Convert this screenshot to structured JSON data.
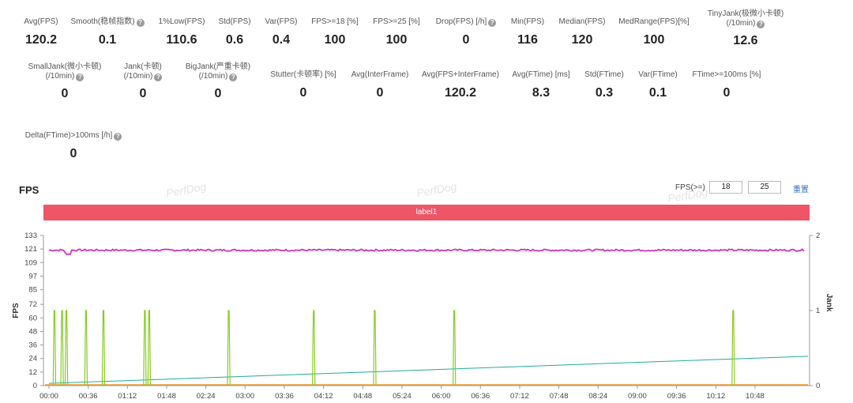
{
  "stats": [
    {
      "label": "Avg(FPS)",
      "value": "120.2",
      "help": false
    },
    {
      "label": "Smooth(稳帧指数)",
      "value": "0.1",
      "help": true
    },
    {
      "label": "1%Low(FPS)",
      "value": "110.6",
      "help": false
    },
    {
      "label": "Std(FPS)",
      "value": "0.6",
      "help": false
    },
    {
      "label": "Var(FPS)",
      "value": "0.4",
      "help": false
    },
    {
      "label": "FPS>=18 [%]",
      "value": "100",
      "help": false
    },
    {
      "label": "FPS>=25 [%]",
      "value": "100",
      "help": false
    },
    {
      "label": "Drop(FPS) [/h]",
      "value": "0",
      "help": true
    },
    {
      "label": "Min(FPS)",
      "value": "116",
      "help": false
    },
    {
      "label": "Median(FPS)",
      "value": "120",
      "help": false
    },
    {
      "label": "MedRange(FPS)[%]",
      "value": "100",
      "help": false
    },
    {
      "label": "TinyJank(极微小卡顿)",
      "label2": "(/10min)",
      "value": "12.6",
      "help": true
    },
    {
      "label": "SmallJank(微小卡顿)",
      "label2": "(/10min)",
      "value": "0",
      "help": true
    },
    {
      "label": "Jank(卡顿)",
      "label2": "(/10min)",
      "value": "0",
      "help": true
    },
    {
      "label": "BigJank(严重卡顿)",
      "label2": "(/10min)",
      "value": "0",
      "help": true
    },
    {
      "label": "Stutter(卡顿率) [%]",
      "value": "0",
      "help": false
    },
    {
      "label": "Avg(InterFrame)",
      "value": "0",
      "help": false
    },
    {
      "label": "Avg(FPS+InterFrame)",
      "value": "120.2",
      "help": false
    },
    {
      "label": "Avg(FTime) [ms]",
      "value": "8.3",
      "help": false
    },
    {
      "label": "Std(FTime)",
      "value": "0.3",
      "help": false
    },
    {
      "label": "Var(FTime)",
      "value": "0.1",
      "help": false
    },
    {
      "label": "FTime>=100ms [%]",
      "value": "0",
      "help": false
    },
    {
      "label": "Delta(FTime)>100ms [/h]",
      "value": "0",
      "help": true
    }
  ],
  "section_title": "FPS",
  "filter": {
    "label": "FPS(>=)",
    "value1": "18",
    "value2": "25",
    "reset_label": "重置"
  },
  "watermark": "PerfDog",
  "label_bar": "label1",
  "colors": {
    "fps": "#cc33bb",
    "jank": "#88cc22",
    "trend": "#22aa99",
    "base": "#ee9933",
    "label_bar": "#ee5566",
    "link": "#2f6fd8"
  },
  "chart_data": {
    "type": "line",
    "ylabel": "FPS",
    "y2label": "Jank",
    "yticks": [
      0,
      12,
      24,
      36,
      48,
      60,
      72,
      85,
      97,
      109,
      121,
      133
    ],
    "ylim": [
      0,
      133
    ],
    "y2ticks": [
      0,
      1,
      2
    ],
    "y2lim": [
      0,
      2
    ],
    "xticks": [
      "00:00",
      "00:36",
      "01:12",
      "01:48",
      "02:24",
      "03:00",
      "03:36",
      "04:12",
      "04:48",
      "05:24",
      "06:00",
      "06:36",
      "07:12",
      "07:48",
      "08:24",
      "09:00",
      "09:36",
      "10:12",
      "10:48"
    ],
    "xlim_seconds": [
      0,
      693
    ],
    "series": [
      {
        "key": "fps",
        "approx_level": 120,
        "min": 116
      },
      {
        "key": "jank",
        "spike_times_seconds": [
          5,
          12,
          16,
          34,
          50,
          88,
          92,
          165,
          243,
          299,
          372,
          628
        ],
        "spike_value": 1
      },
      {
        "key": "trend",
        "start": 2,
        "end": 26
      }
    ]
  }
}
